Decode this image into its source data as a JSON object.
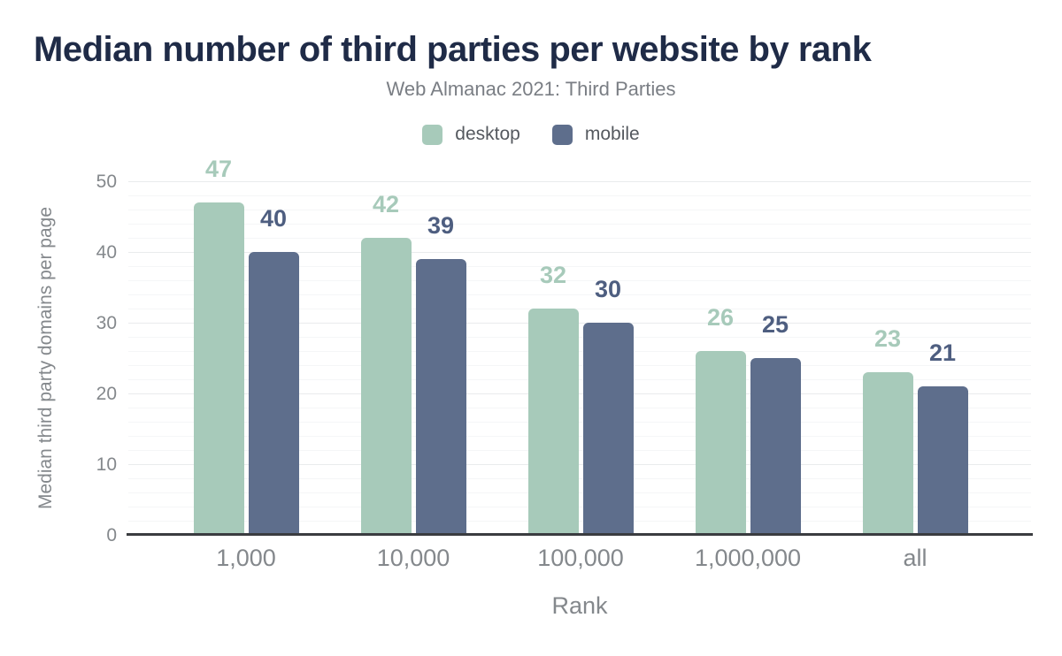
{
  "header": {
    "title": "Median number of third parties per website by rank",
    "subtitle": "Web Almanac 2021: Third Parties"
  },
  "legend": {
    "items": [
      {
        "label": "desktop",
        "color": "#a7caba"
      },
      {
        "label": "mobile",
        "color": "#5e6e8c"
      }
    ]
  },
  "chart_data": {
    "type": "bar",
    "title": "Median number of third parties per website by rank",
    "subtitle": "Web Almanac 2021: Third Parties",
    "categories": [
      "1,000",
      "10,000",
      "100,000",
      "1,000,000",
      "all"
    ],
    "series": [
      {
        "name": "desktop",
        "color": "#a7caba",
        "label_color": "#a7caba",
        "values": [
          47,
          42,
          32,
          26,
          23
        ]
      },
      {
        "name": "mobile",
        "color": "#5e6e8c",
        "label_color": "#4e5e80",
        "values": [
          40,
          39,
          30,
          25,
          21
        ]
      }
    ],
    "xlabel": "Rank",
    "ylabel": "Median third party domains per page",
    "ylim": [
      0,
      50
    ],
    "yticks": [
      0,
      10,
      20,
      30,
      40,
      50
    ],
    "grid": {
      "orientation": "horizontal",
      "major_every": 10,
      "minor_every": 2
    },
    "legend_position": "top-center",
    "value_labels": "outside-top"
  },
  "colors": {
    "title": "#1f2b47",
    "subtitle": "#7a7e84",
    "legend_text": "#55595f",
    "axis_text": "#84888c",
    "axis_line": "#3a3c40",
    "grid_major": "#e9ebed",
    "grid_minor": "#f5f6f7",
    "background": "#ffffff"
  }
}
